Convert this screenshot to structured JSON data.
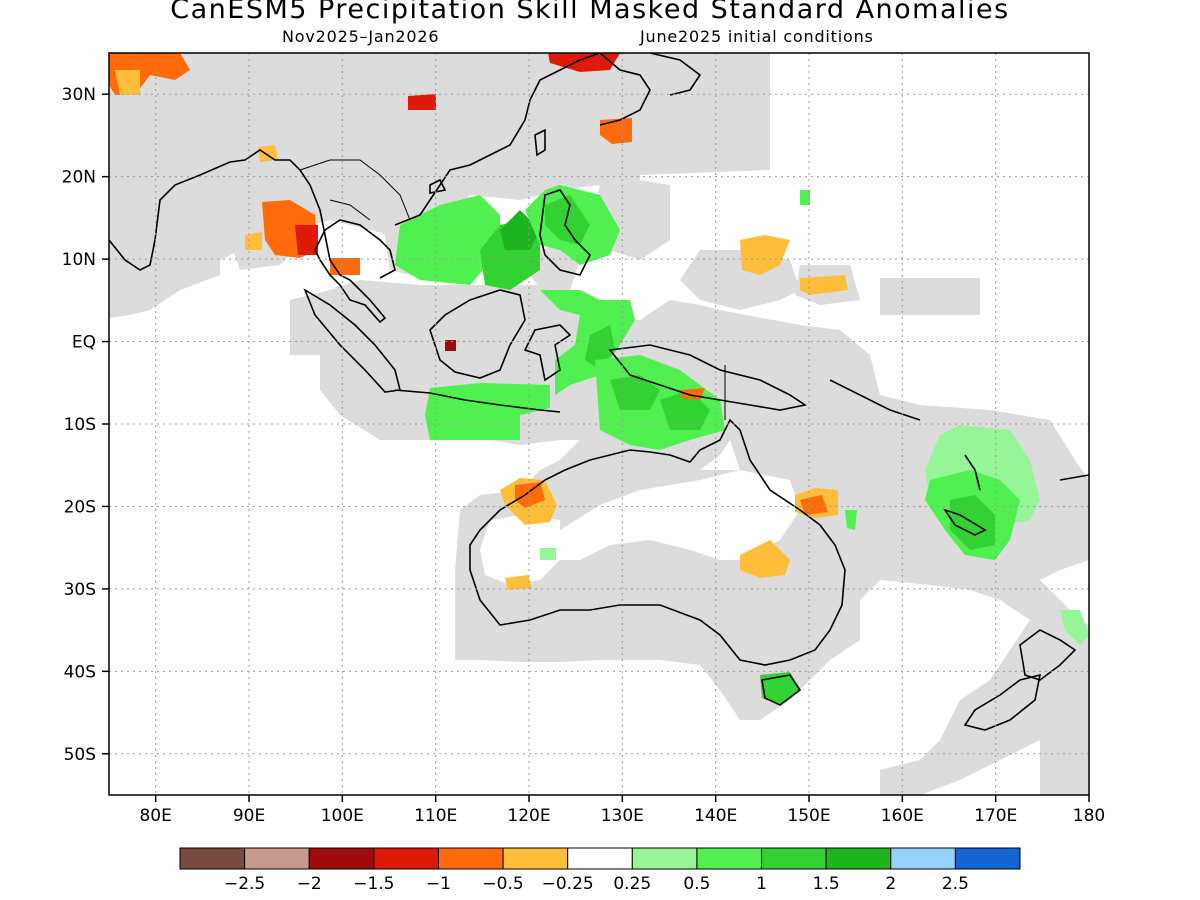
{
  "header": {
    "title": "CanESM5 Precipitation Skill Masked Standard Anomalies",
    "period": "Nov2025–Jan2026",
    "initial_conditions": "June2025 initial conditions"
  },
  "map": {
    "extent": {
      "lon_min": 75,
      "lon_max": 180,
      "lat_min": -55,
      "lat_max": 35
    },
    "lat_ticks": [
      {
        "value": 30,
        "label": "30N"
      },
      {
        "value": 20,
        "label": "20N"
      },
      {
        "value": 10,
        "label": "10N"
      },
      {
        "value": 0,
        "label": "EQ"
      },
      {
        "value": -10,
        "label": "10S"
      },
      {
        "value": -20,
        "label": "20S"
      },
      {
        "value": -30,
        "label": "30S"
      },
      {
        "value": -40,
        "label": "40S"
      },
      {
        "value": -50,
        "label": "50S"
      }
    ],
    "lon_ticks": [
      {
        "value": 80,
        "label": "80E"
      },
      {
        "value": 90,
        "label": "90E"
      },
      {
        "value": 100,
        "label": "100E"
      },
      {
        "value": 110,
        "label": "110E"
      },
      {
        "value": 120,
        "label": "120E"
      },
      {
        "value": 130,
        "label": "130E"
      },
      {
        "value": 140,
        "label": "140E"
      },
      {
        "value": 150,
        "label": "150E"
      },
      {
        "value": 160,
        "label": "160E"
      },
      {
        "value": 170,
        "label": "170E"
      },
      {
        "value": 180,
        "label": "180"
      }
    ],
    "mask_color": "#dcdcdc",
    "coast_color": "#000000"
  },
  "colorbar": {
    "colors": [
      "#7a4a3f",
      "#c89a8e",
      "#a00a0a",
      "#e01a0a",
      "#ff6a0a",
      "#ffbe3a",
      "#ffffff",
      "#96f596",
      "#50f050",
      "#32d232",
      "#1eb41e",
      "#96d2fa",
      "#1464d2"
    ],
    "labels": [
      "−2.5",
      "−2",
      "−1.5",
      "−1",
      "−0.5",
      "−0.25",
      "0.25",
      "0.5",
      "1",
      "1.5",
      "2",
      "2.5"
    ]
  }
}
